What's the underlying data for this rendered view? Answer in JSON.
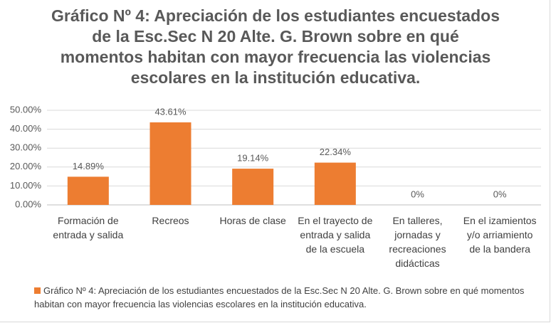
{
  "chart_data": {
    "type": "bar",
    "title": "Gráfico Nº 4: Apreciación de los estudiantes encuestados de la Esc.Sec N 20 Alte. G. Brown sobre en qué momentos habitan con mayor frecuencia las violencias escolares en la institución educativa.",
    "categories": [
      "Formación de entrada y salida",
      "Recreos",
      "Horas de clase",
      "En el trayecto de entrada y salida de la escuela",
      "En talleres, jornadas y recreaciones didácticas",
      "En el izamientos y/o arriamiento de la bandera"
    ],
    "series": [
      {
        "name": "Gráfico Nº 4: Apreciación de los estudiantes encuestados de la Esc.Sec N 20 Alte. G. Brown sobre en qué momentos habitan con mayor frecuencia las violencias escolares en la institución educativa.",
        "color": "#ed7d31",
        "values": [
          14.89,
          43.61,
          19.14,
          22.34,
          0,
          0
        ],
        "value_labels": [
          "14.89%",
          "43.61%",
          "19.14%",
          "22.34%",
          "0%",
          "0%"
        ]
      }
    ],
    "ylim": [
      0,
      50
    ],
    "yticks": [
      {
        "value": 0,
        "label": "0.00%"
      },
      {
        "value": 10,
        "label": "10.00%"
      },
      {
        "value": 20,
        "label": "20.00%"
      },
      {
        "value": 30,
        "label": "30.00%"
      },
      {
        "value": 40,
        "label": "40.00%"
      },
      {
        "value": 50,
        "label": "50.00%"
      }
    ],
    "grid": true,
    "legend": "bottom"
  }
}
